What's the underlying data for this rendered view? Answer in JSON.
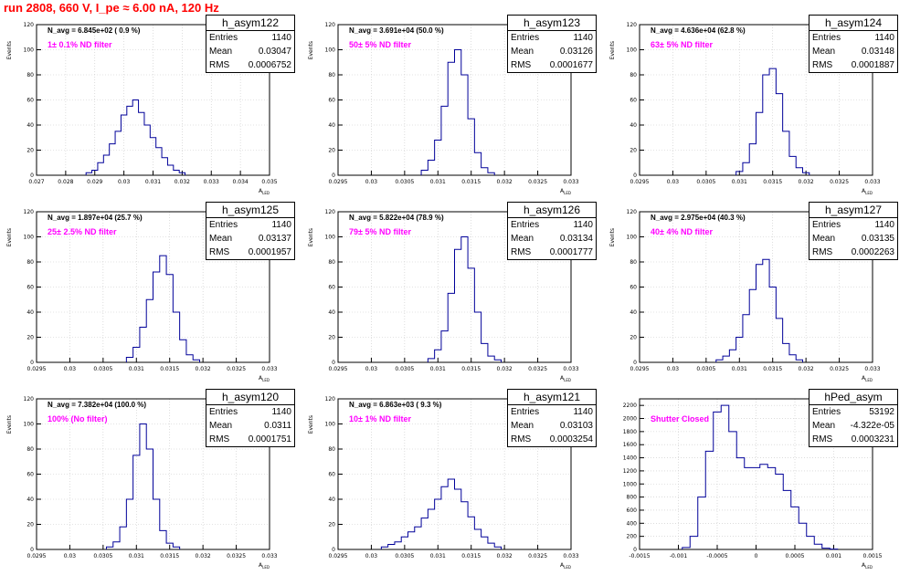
{
  "header": "run 2808,   660 V, I_pe ≈ 6.00 nA, 120 Hz",
  "chart_data": [
    {
      "type": "bar",
      "name": "h_asym122",
      "entries": "1140",
      "mean": "0.03047",
      "rms": "0.0006752",
      "n_avg": "N_avg = 6.845e+02 ( 0.9 %)",
      "filter": "1± 0.1% ND filter",
      "xlabel": "A_{LED}",
      "ylabel": "Events",
      "xlim": [
        0.027,
        0.035
      ],
      "ylim": [
        0,
        120
      ],
      "yticks": [
        0,
        20,
        40,
        60,
        80,
        100,
        120
      ],
      "xticks": [
        "0.027",
        "0.028",
        "0.029",
        "0.03",
        "0.031",
        "0.032",
        "0.033",
        "0.034",
        "0.035"
      ],
      "x": [
        0.0288,
        0.029,
        0.0292,
        0.0294,
        0.0296,
        0.0298,
        0.03,
        0.0302,
        0.0304,
        0.0306,
        0.0308,
        0.031,
        0.0312,
        0.0314,
        0.0316,
        0.0318,
        0.032
      ],
      "values": [
        2,
        4,
        10,
        16,
        25,
        35,
        48,
        55,
        60,
        50,
        40,
        30,
        22,
        14,
        8,
        4,
        2
      ]
    },
    {
      "type": "bar",
      "name": "h_asym123",
      "entries": "1140",
      "mean": "0.03126",
      "rms": "0.0001677",
      "n_avg": "N_avg = 3.691e+04 (50.0 %)",
      "filter": "50± 5% ND filter",
      "xlabel": "A_{LED}",
      "ylabel": "Events",
      "xlim": [
        0.0295,
        0.033
      ],
      "ylim": [
        0,
        120
      ],
      "yticks": [
        0,
        20,
        40,
        60,
        80,
        100,
        120
      ],
      "xticks": [
        "0.0295",
        "0.03",
        "0.0305",
        "0.031",
        "0.0315",
        "0.032",
        "0.0325",
        "0.033"
      ],
      "x": [
        0.0308,
        0.0309,
        0.031,
        0.0311,
        0.0312,
        0.0313,
        0.0314,
        0.0315,
        0.0316,
        0.0317,
        0.0318
      ],
      "values": [
        4,
        12,
        28,
        55,
        90,
        100,
        80,
        45,
        18,
        6,
        2
      ]
    },
    {
      "type": "bar",
      "name": "h_asym124",
      "entries": "1140",
      "mean": "0.03148",
      "rms": "0.0001887",
      "n_avg": "N_avg = 4.636e+04 (62.8 %)",
      "filter": "63± 5% ND filter",
      "xlabel": "A_{LED}",
      "ylabel": "Events",
      "xlim": [
        0.0295,
        0.033
      ],
      "ylim": [
        0,
        120
      ],
      "yticks": [
        0,
        20,
        40,
        60,
        80,
        100,
        120
      ],
      "xticks": [
        "0.0295",
        "0.03",
        "0.0305",
        "0.031",
        "0.0315",
        "0.032",
        "0.0325",
        "0.033"
      ],
      "x": [
        0.031,
        0.0311,
        0.0312,
        0.0313,
        0.0314,
        0.0315,
        0.0316,
        0.0317,
        0.0318,
        0.0319,
        0.032
      ],
      "values": [
        3,
        10,
        25,
        50,
        80,
        85,
        65,
        35,
        15,
        6,
        2
      ]
    },
    {
      "type": "bar",
      "name": "h_asym125",
      "entries": "1140",
      "mean": "0.03137",
      "rms": "0.0001957",
      "n_avg": "N_avg = 1.897e+04 (25.7 %)",
      "filter": "25± 2.5% ND filter",
      "xlabel": "A_{LED}",
      "ylabel": "Events",
      "xlim": [
        0.0295,
        0.033
      ],
      "ylim": [
        0,
        120
      ],
      "yticks": [
        0,
        20,
        40,
        60,
        80,
        100,
        120
      ],
      "xticks": [
        "0.0295",
        "0.03",
        "0.0305",
        "0.031",
        "0.0315",
        "0.032",
        "0.0325",
        "0.033"
      ],
      "x": [
        0.0309,
        0.031,
        0.0311,
        0.0312,
        0.0313,
        0.0314,
        0.0315,
        0.0316,
        0.0317,
        0.0318,
        0.0319
      ],
      "values": [
        4,
        12,
        28,
        50,
        72,
        85,
        70,
        40,
        18,
        6,
        2
      ]
    },
    {
      "type": "bar",
      "name": "h_asym126",
      "entries": "1140",
      "mean": "0.03134",
      "rms": "0.0001777",
      "n_avg": "N_avg = 5.822e+04 (78.9 %)",
      "filter": "79± 5% ND filter",
      "xlabel": "A_{LED}",
      "ylabel": "Events",
      "xlim": [
        0.0295,
        0.033
      ],
      "ylim": [
        0,
        120
      ],
      "yticks": [
        0,
        20,
        40,
        60,
        80,
        100,
        120
      ],
      "xticks": [
        "0.0295",
        "0.03",
        "0.0305",
        "0.031",
        "0.0315",
        "0.032",
        "0.0325",
        "0.033"
      ],
      "x": [
        0.0309,
        0.031,
        0.0311,
        0.0312,
        0.0313,
        0.0314,
        0.0315,
        0.0316,
        0.0317,
        0.0318,
        0.0319
      ],
      "values": [
        3,
        10,
        25,
        55,
        90,
        100,
        75,
        40,
        15,
        5,
        2
      ]
    },
    {
      "type": "bar",
      "name": "h_asym127",
      "entries": "1140",
      "mean": "0.03135",
      "rms": "0.0002263",
      "n_avg": "N_avg = 2.975e+04 (40.3 %)",
      "filter": "40± 4% ND filter",
      "xlabel": "A_{LED}",
      "ylabel": "Events",
      "xlim": [
        0.0295,
        0.033
      ],
      "ylim": [
        0,
        120
      ],
      "yticks": [
        0,
        20,
        40,
        60,
        80,
        100,
        120
      ],
      "xticks": [
        "0.0295",
        "0.03",
        "0.0305",
        "0.031",
        "0.0315",
        "0.032",
        "0.0325",
        "0.033"
      ],
      "x": [
        0.0307,
        0.0308,
        0.0309,
        0.031,
        0.0311,
        0.0312,
        0.0313,
        0.0314,
        0.0315,
        0.0316,
        0.0317,
        0.0318,
        0.0319
      ],
      "values": [
        2,
        5,
        10,
        20,
        38,
        58,
        78,
        82,
        60,
        35,
        15,
        6,
        2
      ]
    },
    {
      "type": "bar",
      "name": "h_asym120",
      "entries": "1140",
      "mean": "0.0311",
      "rms": "0.0001751",
      "n_avg": "N_avg = 7.382e+04 (100.0 %)",
      "filter": "100% (No filter)",
      "xlabel": "A_{LED}",
      "ylabel": "Events",
      "xlim": [
        0.0295,
        0.033
      ],
      "ylim": [
        0,
        120
      ],
      "yticks": [
        0,
        20,
        40,
        60,
        80,
        100,
        120
      ],
      "xticks": [
        "0.0295",
        "0.03",
        "0.0305",
        "0.031",
        "0.0315",
        "0.032",
        "0.0325",
        "0.033"
      ],
      "x": [
        0.0306,
        0.0307,
        0.0308,
        0.0309,
        0.031,
        0.0311,
        0.0312,
        0.0313,
        0.0314,
        0.0315,
        0.0316
      ],
      "values": [
        2,
        6,
        18,
        40,
        75,
        100,
        80,
        40,
        15,
        5,
        2
      ]
    },
    {
      "type": "bar",
      "name": "h_asym121",
      "entries": "1140",
      "mean": "0.03103",
      "rms": "0.0003254",
      "n_avg": "N_avg = 6.863e+03 ( 9.3 %)",
      "filter": "10± 1% ND filter",
      "xlabel": "A_{LED}",
      "ylabel": "Events",
      "xlim": [
        0.0295,
        0.033
      ],
      "ylim": [
        0,
        120
      ],
      "yticks": [
        0,
        20,
        40,
        60,
        80,
        100,
        120
      ],
      "xticks": [
        "0.0295",
        "0.03",
        "0.0305",
        "0.031",
        "0.0315",
        "0.032",
        "0.0325",
        "0.033"
      ],
      "x": [
        0.0302,
        0.0303,
        0.0304,
        0.0305,
        0.0306,
        0.0307,
        0.0308,
        0.0309,
        0.031,
        0.0311,
        0.0312,
        0.0313,
        0.0314,
        0.0315,
        0.0316,
        0.0317,
        0.0318,
        0.0319
      ],
      "values": [
        2,
        4,
        6,
        10,
        14,
        18,
        25,
        32,
        40,
        50,
        56,
        48,
        38,
        26,
        16,
        10,
        5,
        2
      ]
    },
    {
      "type": "bar",
      "name": "hPed_asym",
      "entries": "53192",
      "mean": "-4.322e-05",
      "rms": "0.0003231",
      "n_avg": "",
      "filter": "Shutter Closed",
      "xlabel": "A_{LED}",
      "ylabel": "",
      "xlim": [
        -0.0015,
        0.0015
      ],
      "ylim": [
        0,
        2300
      ],
      "yticks": [
        0,
        200,
        400,
        600,
        800,
        1000,
        1200,
        1400,
        1600,
        1800,
        2000,
        2200
      ],
      "xticks": [
        "-0.0015",
        "-0.001",
        "-0.0005",
        "0",
        "0.0005",
        "0.001",
        "0.0015"
      ],
      "x": [
        -0.0009,
        -0.0008,
        -0.0007,
        -0.0006,
        -0.0005,
        -0.0004,
        -0.0003,
        -0.0002,
        -0.0001,
        0,
        0.0001,
        0.0002,
        0.0003,
        0.0004,
        0.0005,
        0.0006,
        0.0007,
        0.0008,
        0.0009,
        0.001
      ],
      "values": [
        30,
        200,
        800,
        1500,
        2100,
        2200,
        1800,
        1400,
        1250,
        1250,
        1300,
        1250,
        1150,
        900,
        650,
        400,
        200,
        80,
        20,
        5
      ]
    }
  ]
}
